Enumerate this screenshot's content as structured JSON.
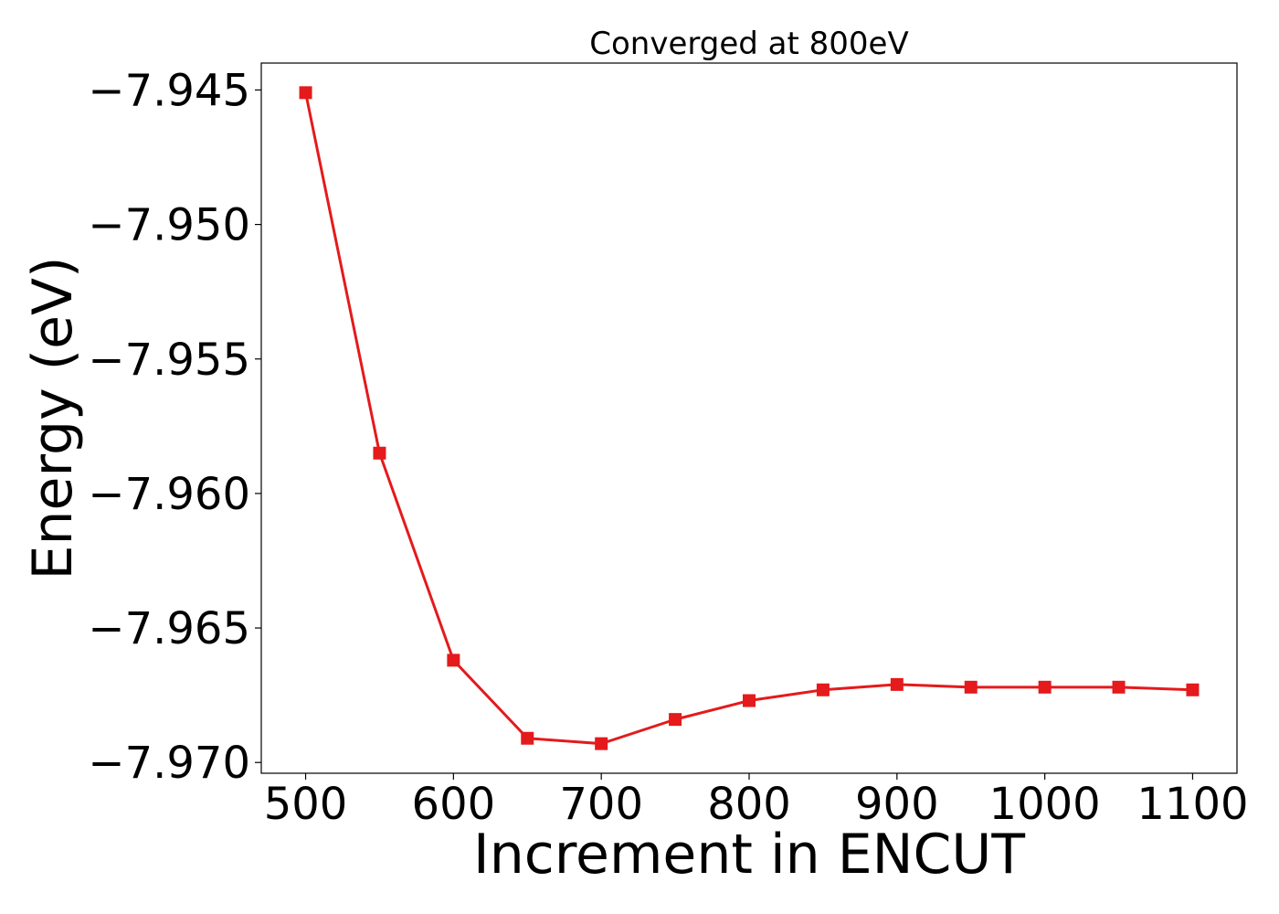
{
  "chart_data": {
    "type": "line",
    "title": "Converged at 800eV",
    "xlabel": "Increment in ENCUT",
    "ylabel": "Energy (eV)",
    "x": [
      500,
      550,
      600,
      650,
      700,
      750,
      800,
      850,
      900,
      950,
      1000,
      1050,
      1100
    ],
    "series": [
      {
        "values": [
          -7.9451,
          -7.9585,
          -7.9662,
          -7.9691,
          -7.9693,
          -7.9684,
          -7.9677,
          -7.9673,
          -7.9671,
          -7.9672,
          -7.9672,
          -7.9672,
          -7.9673
        ],
        "color": "#e41a1c",
        "marker": "square"
      }
    ],
    "xticks": [
      500,
      600,
      700,
      800,
      900,
      1000,
      1100
    ],
    "xtick_labels": [
      "500",
      "600",
      "700",
      "800",
      "900",
      "1000",
      "1100"
    ],
    "yticks": [
      -7.945,
      -7.95,
      -7.955,
      -7.96,
      -7.965,
      -7.97
    ],
    "ytick_labels": [
      "−7.945",
      "−7.950",
      "−7.955",
      "−7.960",
      "−7.965",
      "−7.970"
    ],
    "xlim": [
      470,
      1130
    ],
    "ylim": [
      -7.9704,
      -7.944
    ],
    "grid": false,
    "legend": "none"
  }
}
